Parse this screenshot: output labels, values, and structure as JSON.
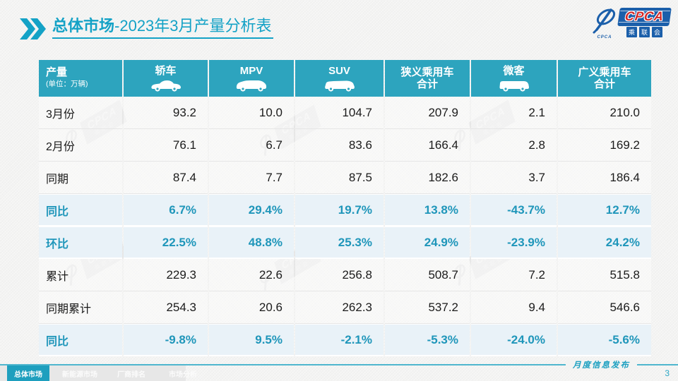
{
  "header": {
    "title_bold": "总体市场",
    "title_rest": "-2023年3月产量分析表",
    "logo": {
      "text": "CPCA",
      "subtext": "乘联会",
      "swirl_label": "CPCA"
    }
  },
  "watermark": {
    "text": "CPCA",
    "subtext": "乘联会"
  },
  "table": {
    "columns": [
      {
        "title": "产量",
        "subtitle": "(单位：万辆)",
        "icon": null
      },
      {
        "title": "轿车",
        "icon": "sedan-icon"
      },
      {
        "title": "MPV",
        "icon": "mpv-icon"
      },
      {
        "title": "SUV",
        "icon": "suv-icon"
      },
      {
        "title": "狭义乘用车",
        "title2": "合计",
        "icon": null
      },
      {
        "title": "微客",
        "icon": "microvan-icon"
      },
      {
        "title": "广义乘用车",
        "title2": "合计",
        "icon": null
      }
    ],
    "rows": [
      {
        "label": "3月份",
        "type": "normal",
        "values": [
          "93.2",
          "10.0",
          "104.7",
          "207.9",
          "2.1",
          "210.0"
        ]
      },
      {
        "label": "2月份",
        "type": "normal",
        "values": [
          "76.1",
          "6.7",
          "83.6",
          "166.4",
          "2.8",
          "169.2"
        ]
      },
      {
        "label": "同期",
        "type": "normal",
        "values": [
          "87.4",
          "7.7",
          "87.5",
          "182.6",
          "3.7",
          "186.4"
        ]
      },
      {
        "label": "同比",
        "type": "highlight",
        "values": [
          "6.7%",
          "29.4%",
          "19.7%",
          "13.8%",
          "-43.7%",
          "12.7%"
        ]
      },
      {
        "label": "环比",
        "type": "highlight",
        "values": [
          "22.5%",
          "48.8%",
          "25.3%",
          "24.9%",
          "-23.9%",
          "24.2%"
        ]
      },
      {
        "label": "累计",
        "type": "normal",
        "values": [
          "229.3",
          "22.6",
          "256.8",
          "508.7",
          "7.2",
          "515.8"
        ]
      },
      {
        "label": "同期累计",
        "type": "normal",
        "values": [
          "254.3",
          "20.6",
          "262.3",
          "537.2",
          "9.4",
          "546.6"
        ]
      },
      {
        "label": "同比",
        "type": "highlight",
        "values": [
          "-9.8%",
          "9.5%",
          "-2.1%",
          "-5.3%",
          "-24.0%",
          "-5.6%"
        ]
      }
    ]
  },
  "footer": {
    "tabs": [
      {
        "label": "总体市场",
        "active": true
      },
      {
        "label": "新能源市场",
        "active": false
      },
      {
        "label": "厂商排名",
        "active": false
      },
      {
        "label": "市场分析",
        "active": false
      }
    ],
    "publication": "月度信息发布",
    "page_number": "3"
  },
  "colors": {
    "accent": "#14A2C6",
    "table_header_bg": "#2DA4BE",
    "highlight_bg": "#E9F2F8",
    "highlight_text": "#1F96BA",
    "logo_blue": "#1B5FAA",
    "logo_red": "#D42B28"
  }
}
